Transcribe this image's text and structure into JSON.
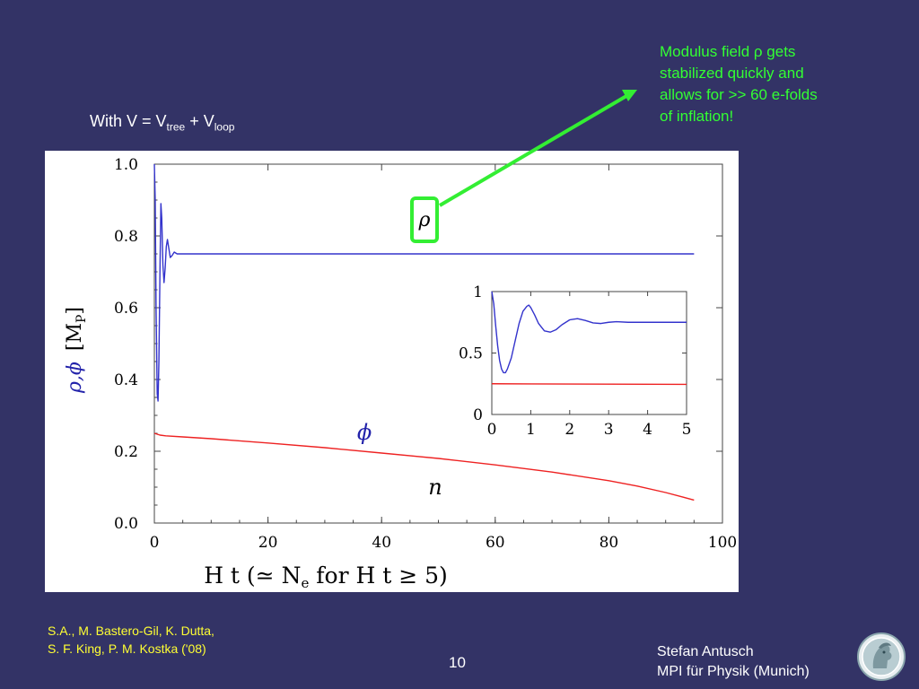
{
  "slide": {
    "formula": {
      "prefix": "With V = V",
      "sub1": "tree",
      "middle": " + V",
      "sub2": "loop"
    },
    "annotation": [
      "Modulus field ρ gets",
      "stabilized quickly and",
      "allows for >> 60 e-folds",
      "of inflation!"
    ],
    "citation": [
      "S.A., M. Bastero-Gil, K. Dutta,",
      "S. F. King, P. M. Kostka ('08)"
    ],
    "page_number": "10",
    "author": [
      "Stefan Antusch",
      "MPI für Physik (Munich)"
    ],
    "colors": {
      "background": "#333366",
      "annotation": "#33ff33",
      "citation": "#ffff33",
      "rho_curve": "#3333cc",
      "phi_curve": "#ee2222"
    },
    "logo_icon": "max-planck-minerva-logo"
  },
  "chart_data": [
    {
      "type": "line",
      "title": "",
      "xlabel": "H t  (≃ N",
      "xlabel_sub": "e",
      "xlabel_tail": " for H t ≥ 5)",
      "ylabel_vars": "ρ,ϕ",
      "ylabel_unit": "[M",
      "ylabel_unit_sub": "P",
      "ylabel_unit_close": "]",
      "xlim": [
        0,
        100
      ],
      "ylim": [
        0,
        1.0
      ],
      "x_ticks": [
        "0",
        "20",
        "40",
        "60",
        "80",
        "100"
      ],
      "y_ticks": [
        "0.0",
        "0.2",
        "0.4",
        "0.6",
        "0.8",
        "1.0"
      ],
      "grid": false,
      "labels": {
        "rho": "ρ",
        "phi": "ϕ",
        "n": "n"
      },
      "series": [
        {
          "name": "ρ",
          "color": "#3333cc",
          "x": [
            0,
            0.15,
            0.3,
            0.5,
            0.65,
            0.8,
            1.0,
            1.15,
            1.3,
            1.5,
            1.7,
            1.9,
            2.1,
            2.3,
            2.5,
            2.8,
            3.1,
            3.5,
            4.0,
            5.0,
            10,
            30,
            60,
            95
          ],
          "y": [
            1.0,
            0.9,
            0.6,
            0.36,
            0.34,
            0.45,
            0.72,
            0.89,
            0.85,
            0.72,
            0.67,
            0.71,
            0.77,
            0.79,
            0.77,
            0.74,
            0.745,
            0.755,
            0.75,
            0.75,
            0.75,
            0.75,
            0.75,
            0.75
          ]
        },
        {
          "name": "ϕ",
          "color": "#ee2222",
          "x": [
            0,
            1,
            2,
            5,
            10,
            20,
            30,
            40,
            50,
            60,
            70,
            80,
            85,
            90,
            95
          ],
          "y": [
            0.25,
            0.245,
            0.243,
            0.24,
            0.235,
            0.223,
            0.21,
            0.195,
            0.18,
            0.162,
            0.142,
            0.118,
            0.103,
            0.085,
            0.064
          ]
        }
      ]
    },
    {
      "type": "line",
      "title": "",
      "xlim": [
        0,
        5
      ],
      "ylim": [
        0,
        1
      ],
      "x_ticks": [
        "0",
        "1",
        "2",
        "3",
        "4",
        "5"
      ],
      "y_ticks": [
        "0",
        "0.5",
        "1"
      ],
      "grid": false,
      "series": [
        {
          "name": "ρ",
          "color": "#3333cc",
          "x": [
            0,
            0.05,
            0.1,
            0.15,
            0.2,
            0.25,
            0.3,
            0.35,
            0.4,
            0.5,
            0.6,
            0.7,
            0.8,
            0.9,
            0.95,
            1.0,
            1.1,
            1.2,
            1.35,
            1.5,
            1.65,
            1.8,
            2.0,
            2.2,
            2.4,
            2.6,
            2.8,
            3.0,
            3.2,
            3.5,
            4.0,
            4.5,
            5.0
          ],
          "y": [
            1.0,
            0.9,
            0.72,
            0.56,
            0.44,
            0.37,
            0.34,
            0.34,
            0.37,
            0.46,
            0.6,
            0.74,
            0.84,
            0.88,
            0.89,
            0.87,
            0.81,
            0.74,
            0.68,
            0.67,
            0.69,
            0.73,
            0.77,
            0.78,
            0.765,
            0.745,
            0.74,
            0.75,
            0.755,
            0.75,
            0.75,
            0.75,
            0.75
          ]
        },
        {
          "name": "ϕ",
          "color": "#ee2222",
          "x": [
            0,
            1,
            2,
            3,
            4,
            5
          ],
          "y": [
            0.25,
            0.249,
            0.248,
            0.247,
            0.246,
            0.245
          ]
        }
      ]
    }
  ]
}
